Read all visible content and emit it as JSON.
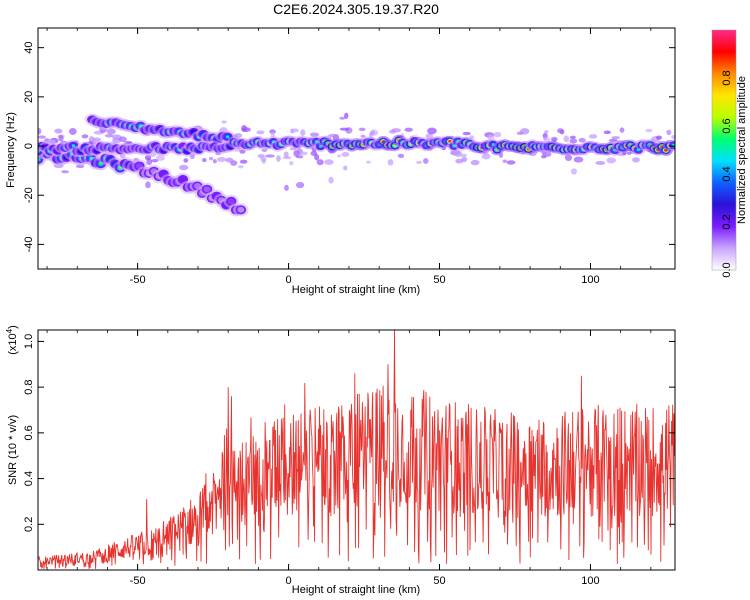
{
  "figure": {
    "title": "C2E6.2024.305.19.37.R20"
  },
  "colorbar": {
    "label": "Normalized spectral amplitude",
    "ticks": [
      "0.0",
      "0.2",
      "0.4",
      "0.6",
      "0.8"
    ],
    "range": [
      0,
      1
    ],
    "colors": [
      "#ffffff",
      "#c9a6ff",
      "#7a1cff",
      "#2a12d8",
      "#1060ff",
      "#00e0ff",
      "#00ff70",
      "#b8ff00",
      "#ffe600",
      "#ff8a00",
      "#ff0000",
      "#ff2a8a"
    ]
  },
  "chart_data": [
    {
      "type": "heatmap",
      "xlabel": "Height of straight line (km)",
      "ylabel": "Frequency (Hz)",
      "xlim": [
        -83,
        128
      ],
      "ylim": [
        -50,
        48
      ],
      "xticks": [
        "-50",
        "0",
        "50",
        "100"
      ],
      "yticks": [
        "40",
        "20",
        "0",
        "-20",
        "-40"
      ],
      "xtick_values": [
        -50,
        0,
        50,
        100
      ],
      "ytick_values": [
        40,
        20,
        0,
        -20,
        -40
      ],
      "description_values": {
        "main_band": {
          "x_range": [
            -83,
            128
          ],
          "center_frequency_hz": 0,
          "width_hz": 4
        },
        "lower_branch": {
          "x_range": [
            -83,
            -15
          ],
          "frequency_hz_start": -4,
          "frequency_hz_end": -26
        },
        "upper_branch": {
          "x_range": [
            -65,
            -20
          ],
          "frequency_hz_start": 10,
          "frequency_hz_end": 3
        }
      },
      "grid": false
    },
    {
      "type": "line",
      "xlabel": "Height of straight line (km)",
      "ylabel": "SNR (10 * v/v)",
      "ymultiplier": "(x10",
      "ymultiplier_exp": "4",
      "ymultiplier_close": ")",
      "xlim": [
        -83,
        128
      ],
      "ylim": [
        0,
        1.05
      ],
      "xticks": [
        "-50",
        "0",
        "50",
        "100"
      ],
      "yticks": [
        "1.0",
        "0.8",
        "0.6",
        "0.4",
        "0.2"
      ],
      "xtick_values": [
        -50,
        0,
        50,
        100
      ],
      "ytick_values": [
        1.0,
        0.8,
        0.6,
        0.4,
        0.2
      ],
      "color": "#e8322e",
      "series": [
        {
          "x": [
            -83,
            -75,
            -65,
            -55,
            -45,
            -35,
            -25,
            -20,
            -15,
            -10,
            -5,
            0,
            10,
            20,
            30,
            35,
            40,
            50,
            60,
            70,
            80,
            90,
            100,
            110,
            120,
            128
          ],
          "y": [
            0.04,
            0.05,
            0.06,
            0.1,
            0.13,
            0.2,
            0.3,
            0.4,
            0.42,
            0.45,
            0.48,
            0.5,
            0.52,
            0.55,
            0.58,
            0.6,
            0.58,
            0.55,
            0.52,
            0.5,
            0.5,
            0.5,
            0.52,
            0.52,
            0.52,
            0.53
          ]
        }
      ],
      "peaks": [
        {
          "x": 35,
          "y": 1.05
        },
        {
          "x": -20,
          "y": 0.8
        },
        {
          "x": -19,
          "y": 0.76
        },
        {
          "x": 22,
          "y": 0.86
        },
        {
          "x": 33,
          "y": 0.9
        },
        {
          "x": 97,
          "y": 0.85
        },
        {
          "x": -47,
          "y": 0.31
        }
      ]
    }
  ]
}
